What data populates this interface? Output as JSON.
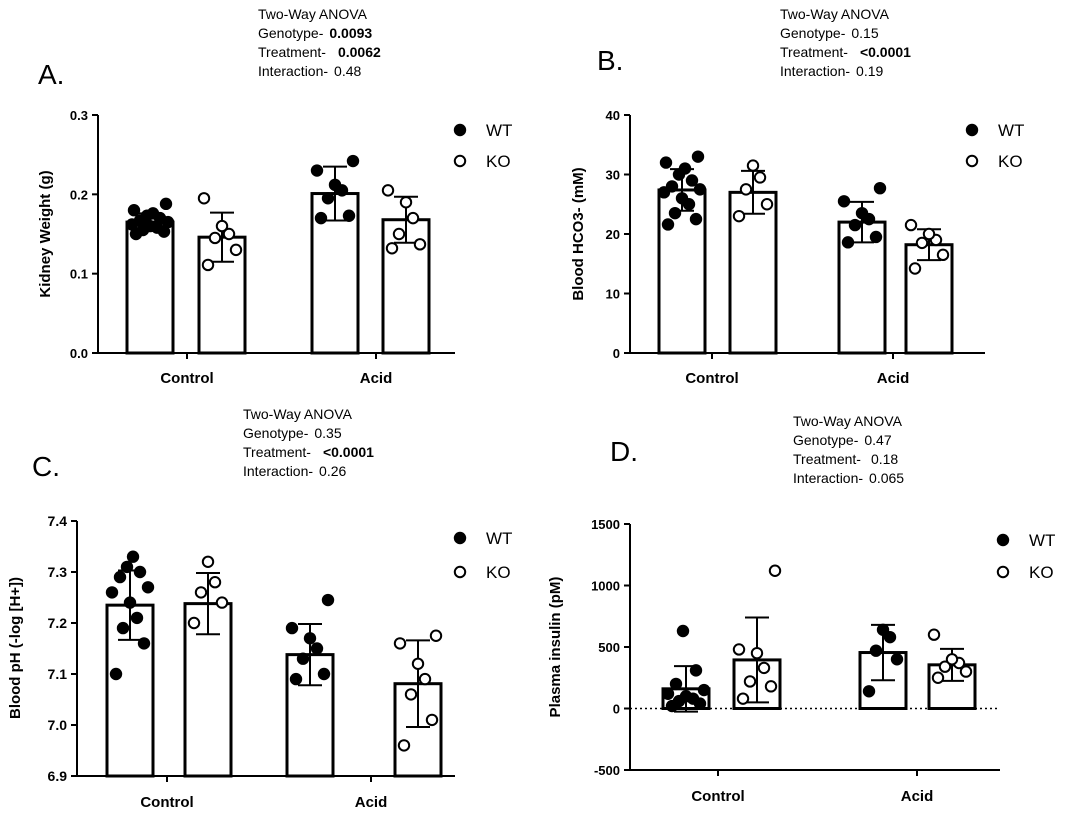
{
  "panels": [
    {
      "label": "A.",
      "anova": {
        "title": "Two-Way ANOVA",
        "rows": [
          {
            "name": "Genotype-",
            "value": "0.0093",
            "bold": true
          },
          {
            "name": "Treatment-",
            "value": "0.0062",
            "bold": true
          },
          {
            "name": "Interaction-",
            "value": "0.48",
            "bold": false
          }
        ]
      }
    },
    {
      "label": "B.",
      "anova": {
        "title": "Two-Way ANOVA",
        "rows": [
          {
            "name": "Genotype-",
            "value": "0.15",
            "bold": false
          },
          {
            "name": "Treatment-",
            "value": "<0.0001",
            "bold": true
          },
          {
            "name": "Interaction-",
            "value": "0.19",
            "bold": false
          }
        ]
      }
    },
    {
      "label": "C.",
      "anova": {
        "title": "Two-Way ANOVA",
        "rows": [
          {
            "name": "Genotype-",
            "value": "0.35",
            "bold": false
          },
          {
            "name": "Treatment-",
            "value": "<0.0001",
            "bold": true
          },
          {
            "name": "Interaction-",
            "value": "0.26",
            "bold": false
          }
        ]
      }
    },
    {
      "label": "D.",
      "anova": {
        "title": "Two-Way ANOVA",
        "rows": [
          {
            "name": "Genotype-",
            "value": "0.47",
            "bold": false
          },
          {
            "name": "Treatment-",
            "value": "0.18",
            "bold": false
          },
          {
            "name": "Interaction-",
            "value": "0.065",
            "bold": false
          }
        ]
      }
    }
  ],
  "chart_data": [
    {
      "type": "bar",
      "title": "",
      "ylabel": "Kidney Weight (g)",
      "xlabel": "",
      "categories": [
        "Control",
        "Acid"
      ],
      "ylim": [
        0,
        0.3
      ],
      "yticks": [
        0.0,
        0.1,
        0.2,
        0.3
      ],
      "ytick_labels": [
        "0.0",
        "0.1",
        "0.2",
        "0.3"
      ],
      "legend_position": "top-right",
      "series": [
        {
          "name": "WT",
          "marker": "filled",
          "values": [
            0.165,
            0.201
          ],
          "sd": [
            0.011,
            0.034
          ],
          "points": [
            [
              0.15,
              0.153,
              0.155,
              0.158,
              0.16,
              0.162,
              0.165,
              0.167,
              0.17,
              0.173,
              0.176,
              0.18,
              0.188
            ],
            [
              0.17,
              0.173,
              0.195,
              0.205,
              0.212,
              0.23,
              0.242
            ]
          ]
        },
        {
          "name": "KO",
          "marker": "open",
          "values": [
            0.146,
            0.168
          ],
          "sd": [
            0.031,
            0.029
          ],
          "points": [
            [
              0.111,
              0.13,
              0.145,
              0.15,
              0.16,
              0.195
            ],
            [
              0.132,
              0.137,
              0.15,
              0.17,
              0.19,
              0.205
            ]
          ]
        }
      ]
    },
    {
      "type": "bar",
      "title": "",
      "ylabel": "Blood HCO3- (mM)",
      "xlabel": "",
      "categories": [
        "Control",
        "Acid"
      ],
      "ylim": [
        0,
        40
      ],
      "yticks": [
        0,
        10,
        20,
        30,
        40
      ],
      "ytick_labels": [
        "0",
        "10",
        "20",
        "30",
        "40"
      ],
      "legend_position": "top-right",
      "series": [
        {
          "name": "WT",
          "marker": "filled",
          "values": [
            27.4,
            22.0
          ],
          "sd": [
            3.5,
            3.4
          ],
          "points": [
            [
              21.6,
              22.5,
              23.5,
              25.0,
              26.0,
              27.0,
              27.5,
              28.0,
              29.0,
              30.0,
              31.0,
              32.0,
              33.0
            ],
            [
              18.6,
              19.5,
              21.5,
              22.5,
              23.5,
              25.5,
              27.7
            ]
          ]
        },
        {
          "name": "KO",
          "marker": "open",
          "values": [
            27.0,
            18.2
          ],
          "sd": [
            3.6,
            2.6
          ],
          "points": [
            [
              23.0,
              25.0,
              27.5,
              29.5,
              31.5
            ],
            [
              14.2,
              16.5,
              18.5,
              19.0,
              20.0,
              21.5
            ]
          ]
        }
      ]
    },
    {
      "type": "bar",
      "title": "",
      "ylabel": "Blood pH (-log [H+])",
      "xlabel": "",
      "categories": [
        "Control",
        "Acid"
      ],
      "ylim": [
        6.9,
        7.4
      ],
      "yticks": [
        6.9,
        7.0,
        7.1,
        7.2,
        7.3,
        7.4
      ],
      "ytick_labels": [
        "6.9",
        "7.0",
        "7.1",
        "7.2",
        "7.3",
        "7.4"
      ],
      "legend_position": "top-right",
      "series": [
        {
          "name": "WT",
          "marker": "filled",
          "values": [
            7.235,
            7.138
          ],
          "sd": [
            0.068,
            0.06
          ],
          "points": [
            [
              7.1,
              7.16,
              7.19,
              7.21,
              7.24,
              7.26,
              7.27,
              7.29,
              7.3,
              7.31,
              7.33
            ],
            [
              7.09,
              7.1,
              7.13,
              7.15,
              7.17,
              7.19,
              7.245
            ]
          ]
        },
        {
          "name": "KO",
          "marker": "open",
          "values": [
            7.238,
            7.081
          ],
          "sd": [
            0.06,
            0.085
          ],
          "points": [
            [
              7.2,
              7.24,
              7.26,
              7.28,
              7.32
            ],
            [
              6.96,
              7.01,
              7.06,
              7.09,
              7.12,
              7.16,
              7.175
            ]
          ]
        }
      ]
    },
    {
      "type": "bar",
      "title": "",
      "ylabel": "Plasma insulin (pM)",
      "xlabel": "",
      "categories": [
        "Control",
        "Acid"
      ],
      "ylim": [
        -500,
        1500
      ],
      "yticks": [
        -500,
        0,
        500,
        1000,
        1500
      ],
      "ytick_labels": [
        "-500",
        "0",
        "500",
        "1000",
        "1500"
      ],
      "legend_position": "top-right",
      "zero_line": "dotted",
      "series": [
        {
          "name": "WT",
          "marker": "filled",
          "values": [
            160,
            455
          ],
          "sd": [
            185,
            225
          ],
          "points": [
            [
              20,
              40,
              60,
              80,
              100,
              120,
              150,
              200,
              310,
              630
            ],
            [
              140,
              400,
              470,
              580,
              640
            ]
          ]
        },
        {
          "name": "KO",
          "marker": "open",
          "values": [
            395,
            355
          ],
          "sd": [
            345,
            130
          ],
          "points": [
            [
              80,
              180,
              220,
              330,
              450,
              480,
              1120
            ],
            [
              250,
              300,
              340,
              370,
              400,
              600
            ]
          ]
        }
      ]
    }
  ]
}
